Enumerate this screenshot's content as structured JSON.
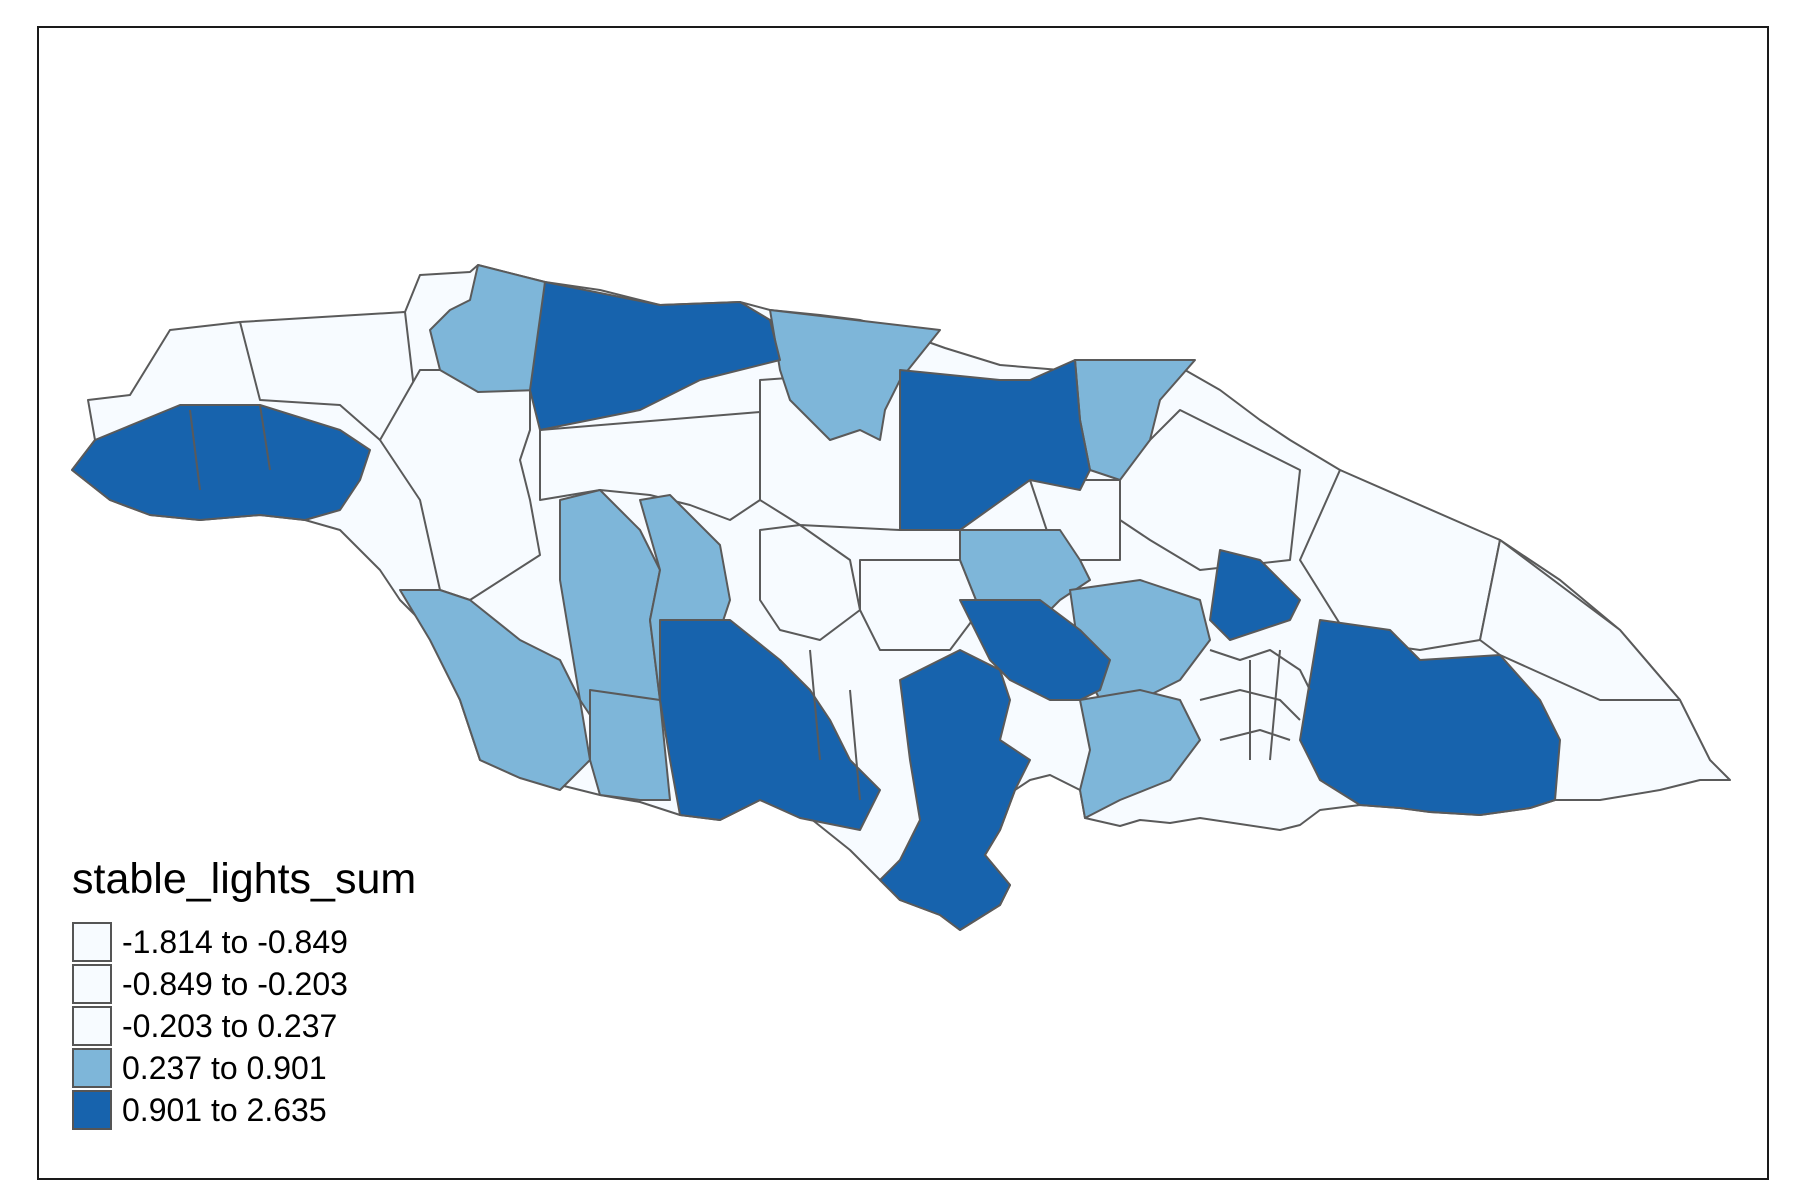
{
  "map": {
    "legend": {
      "title": "stable_lights_sum",
      "classes": [
        {
          "label": "-1.814 to -0.849",
          "color": "#f7fbff"
        },
        {
          "label": "-0.849 to -0.203",
          "color": "#f7fbff"
        },
        {
          "label": "-0.203 to 0.237",
          "color": "#f7fbff"
        },
        {
          "label": "0.237 to 0.901",
          "color": "#7eb6d9"
        },
        {
          "label": "0.901 to 2.635",
          "color": "#1763ad"
        }
      ]
    },
    "border_color": "#5a5a5a"
  }
}
